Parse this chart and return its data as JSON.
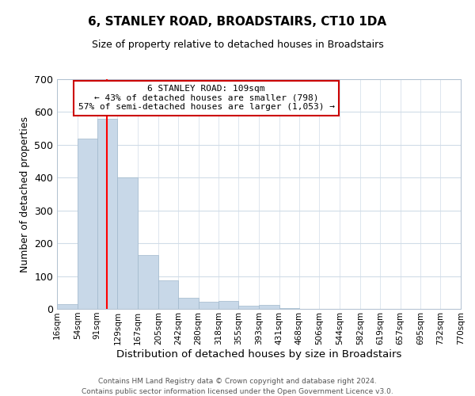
{
  "title": "6, STANLEY ROAD, BROADSTAIRS, CT10 1DA",
  "subtitle": "Size of property relative to detached houses in Broadstairs",
  "xlabel": "Distribution of detached houses by size in Broadstairs",
  "ylabel": "Number of detached properties",
  "bar_color": "#c8d8e8",
  "bar_edge_color": "#a0b8cc",
  "red_line_x": 109,
  "annotation_title": "6 STANLEY ROAD: 109sqm",
  "annotation_line1": "← 43% of detached houses are smaller (798)",
  "annotation_line2": "57% of semi-detached houses are larger (1,053) →",
  "ylim": [
    0,
    700
  ],
  "yticks": [
    0,
    100,
    200,
    300,
    400,
    500,
    600,
    700
  ],
  "bin_edges": [
    16,
    54,
    91,
    129,
    167,
    205,
    242,
    280,
    318,
    355,
    393,
    431,
    468,
    506,
    544,
    582,
    619,
    657,
    695,
    732,
    770
  ],
  "bar_heights": [
    15,
    520,
    580,
    400,
    165,
    87,
    35,
    22,
    25,
    10,
    12,
    3,
    0,
    0,
    0,
    0,
    0,
    0,
    0,
    0
  ],
  "tick_labels": [
    "16sqm",
    "54sqm",
    "91sqm",
    "129sqm",
    "167sqm",
    "205sqm",
    "242sqm",
    "280sqm",
    "318sqm",
    "355sqm",
    "393sqm",
    "431sqm",
    "468sqm",
    "506sqm",
    "544sqm",
    "582sqm",
    "619sqm",
    "657sqm",
    "695sqm",
    "732sqm",
    "770sqm"
  ],
  "footer1": "Contains HM Land Registry data © Crown copyright and database right 2024.",
  "footer2": "Contains public sector information licensed under the Open Government Licence v3.0.",
  "background_color": "#ffffff",
  "plot_bg_color": "#ffffff",
  "grid_color": "#d0dce8",
  "annotation_box_color": "#ffffff",
  "annotation_box_edge": "#cc0000"
}
